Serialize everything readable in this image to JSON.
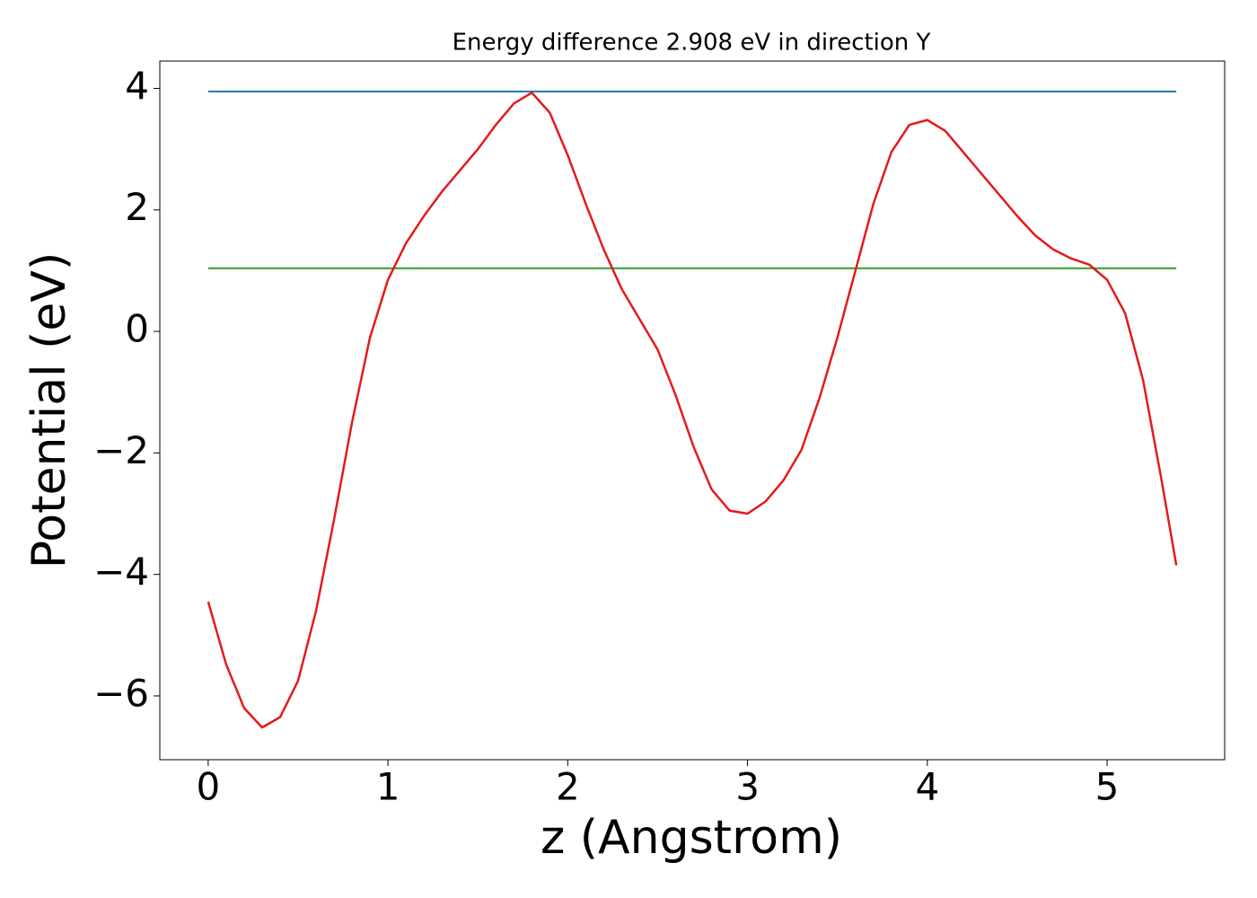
{
  "chart_data": {
    "type": "line",
    "title": "Energy difference 2.908 eV in direction Y",
    "xlabel": "z (Angstrom)",
    "ylabel": "Potential (eV)",
    "x": [
      0,
      0.1,
      0.2,
      0.3,
      0.4,
      0.5,
      0.6,
      0.7,
      0.8,
      0.9,
      1.0,
      1.1,
      1.2,
      1.3,
      1.4,
      1.5,
      1.6,
      1.7,
      1.8,
      1.9,
      2.0,
      2.1,
      2.2,
      2.3,
      2.4,
      2.5,
      2.6,
      2.7,
      2.8,
      2.9,
      3.0,
      3.1,
      3.2,
      3.3,
      3.4,
      3.5,
      3.6,
      3.7,
      3.8,
      3.9,
      4.0,
      4.1,
      4.2,
      4.3,
      4.4,
      4.5,
      4.6,
      4.7,
      4.8,
      4.9,
      5.0,
      5.1,
      5.2,
      5.3,
      5.385
    ],
    "series": [
      {
        "color": "#e31a1c",
        "values": [
          -4.45,
          -5.48,
          -6.2,
          -6.52,
          -6.35,
          -5.75,
          -4.6,
          -3.1,
          -1.5,
          -0.1,
          0.85,
          1.45,
          1.9,
          2.3,
          2.65,
          3.0,
          3.4,
          3.75,
          3.93,
          3.6,
          2.9,
          2.1,
          1.35,
          0.7,
          0.2,
          -0.3,
          -1.05,
          -1.9,
          -2.6,
          -2.95,
          -3.0,
          -2.8,
          -2.45,
          -1.95,
          -1.1,
          -0.1,
          1.0,
          2.1,
          2.95,
          3.4,
          3.48,
          3.3,
          2.95,
          2.6,
          2.25,
          1.9,
          1.58,
          1.35,
          1.2,
          1.1,
          0.85,
          0.3,
          -0.8,
          -2.4,
          -3.85
        ]
      }
    ],
    "hlines": [
      {
        "value": 3.95,
        "color": "#1f77b4",
        "xrange": [
          0,
          5.385
        ]
      },
      {
        "value": 1.04,
        "color": "#2ca02c",
        "xrange": [
          0,
          5.385
        ]
      }
    ],
    "xlim": [
      -0.269,
      5.654
    ],
    "ylim": [
      -7.05,
      4.45
    ],
    "xticks": [
      0,
      1,
      2,
      3,
      4,
      5
    ],
    "yticks": [
      {
        "value": -6,
        "label": "−6"
      },
      {
        "value": -4,
        "label": "−4"
      },
      {
        "value": -2,
        "label": "−2"
      },
      0,
      2,
      4
    ]
  }
}
